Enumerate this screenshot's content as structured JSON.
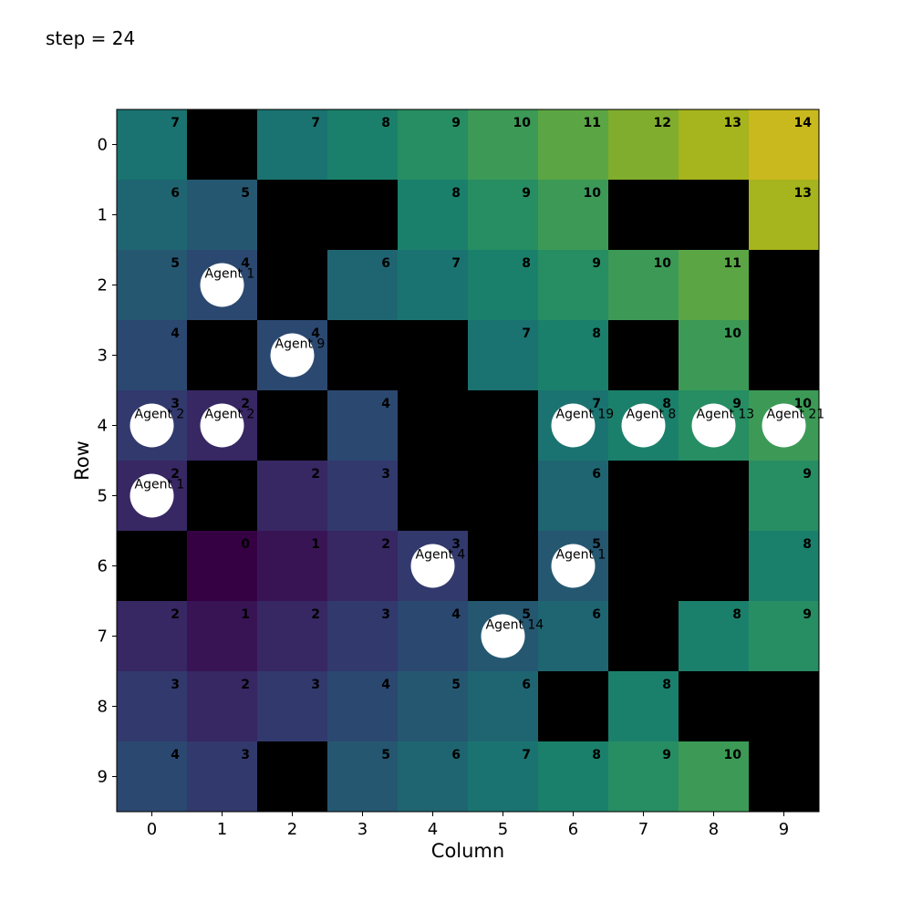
{
  "step_text": "step = 24",
  "chart_data": {
    "type": "heatmap",
    "title": "step = 24",
    "xlabel": "Column",
    "ylabel": "Row",
    "x_ticks": [
      "0",
      "1",
      "2",
      "3",
      "4",
      "5",
      "6",
      "7",
      "8",
      "9"
    ],
    "y_ticks": [
      "0",
      "1",
      "2",
      "3",
      "4",
      "5",
      "6",
      "7",
      "8",
      "9"
    ],
    "value_range": [
      0,
      14
    ],
    "colormap": "viridis",
    "obstacle_color": "#000000",
    "agent_color": "#ffffff",
    "grid": [
      [
        7,
        null,
        7,
        8,
        9,
        10,
        11,
        12,
        13,
        14
      ],
      [
        6,
        5,
        null,
        null,
        8,
        9,
        10,
        null,
        null,
        13
      ],
      [
        5,
        4,
        null,
        6,
        7,
        8,
        9,
        10,
        11,
        null
      ],
      [
        4,
        null,
        4,
        null,
        null,
        7,
        8,
        null,
        10,
        null
      ],
      [
        3,
        2,
        null,
        4,
        null,
        null,
        7,
        8,
        9,
        10
      ],
      [
        2,
        null,
        2,
        3,
        null,
        null,
        6,
        null,
        null,
        9
      ],
      [
        null,
        0,
        1,
        2,
        3,
        null,
        5,
        null,
        null,
        8
      ],
      [
        2,
        1,
        2,
        3,
        4,
        5,
        6,
        null,
        8,
        9
      ],
      [
        3,
        2,
        3,
        4,
        5,
        6,
        null,
        8,
        null,
        null
      ],
      [
        4,
        3,
        null,
        5,
        6,
        7,
        8,
        9,
        10,
        null
      ]
    ],
    "agents": [
      {
        "row": 2,
        "col": 1,
        "label": "Agent 1"
      },
      {
        "row": 3,
        "col": 2,
        "label": "Agent 9"
      },
      {
        "row": 4,
        "col": 0,
        "label": "Agent 2"
      },
      {
        "row": 4,
        "col": 1,
        "label": "Agent 2"
      },
      {
        "row": 4,
        "col": 6,
        "label": "Agent 19"
      },
      {
        "row": 4,
        "col": 7,
        "label": "Agent 8"
      },
      {
        "row": 4,
        "col": 8,
        "label": "Agent 13"
      },
      {
        "row": 4,
        "col": 9,
        "label": "Agent 21"
      },
      {
        "row": 5,
        "col": 0,
        "label": "Agent 1"
      },
      {
        "row": 6,
        "col": 4,
        "label": "Agent 4"
      },
      {
        "row": 6,
        "col": 6,
        "label": "Agent 1"
      },
      {
        "row": 7,
        "col": 5,
        "label": "Agent 14"
      }
    ]
  }
}
